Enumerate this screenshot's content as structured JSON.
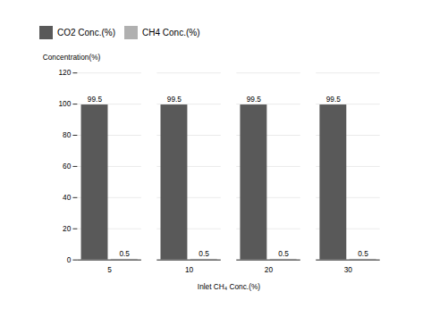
{
  "chart_data": {
    "type": "bar",
    "categories": [
      "5",
      "10",
      "20",
      "30"
    ],
    "series": [
      {
        "name": "CO2 Conc.(%)",
        "color": "#595959",
        "values": [
          99.5,
          99.5,
          99.5,
          99.5
        ]
      },
      {
        "name": "CH4 Conc.(%)",
        "color": "#b0b0b0",
        "values": [
          0.5,
          0.5,
          0.5,
          0.5
        ]
      }
    ],
    "xlabel": "Inlet CH₄ Conc.(%)",
    "ylabel": "Concentration(%)",
    "ylim": [
      0,
      120
    ],
    "yticks": [
      0,
      20,
      40,
      60,
      80,
      100,
      120
    ],
    "grid": true,
    "legend": "top",
    "data_labels": true
  }
}
